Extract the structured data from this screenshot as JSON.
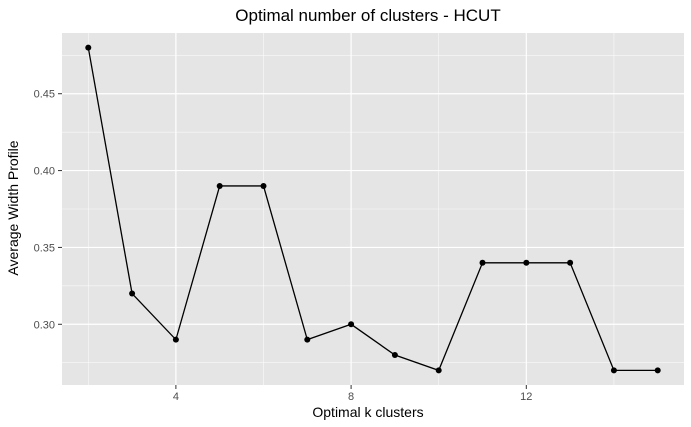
{
  "chart_data": {
    "type": "line",
    "title": "Optimal number of clusters - HCUT",
    "xlabel": "Optimal k clusters",
    "ylabel": "Average Width Profile",
    "x": [
      2,
      3,
      4,
      5,
      6,
      7,
      8,
      9,
      10,
      11,
      12,
      13,
      14,
      15
    ],
    "y": [
      0.48,
      0.32,
      0.29,
      0.39,
      0.39,
      0.29,
      0.3,
      0.28,
      0.27,
      0.34,
      0.34,
      0.34,
      0.27,
      0.27
    ],
    "xlim": [
      1.4,
      15.6
    ],
    "ylim": [
      0.2605,
      0.4895
    ],
    "xticks": [
      4,
      8,
      12
    ],
    "xtick_labels": [
      "4",
      "8",
      "12"
    ],
    "yticks": [
      0.3,
      0.35,
      0.4,
      0.45
    ],
    "ytick_labels": [
      "0.30",
      "0.35",
      "0.40",
      "0.45"
    ],
    "grid": true,
    "legend": "none",
    "colors": {
      "panel_background": "#e5e5e5",
      "grid": "#ffffff",
      "line": "#000000",
      "point": "#000000",
      "tick_label": "#4d4d4d"
    }
  }
}
